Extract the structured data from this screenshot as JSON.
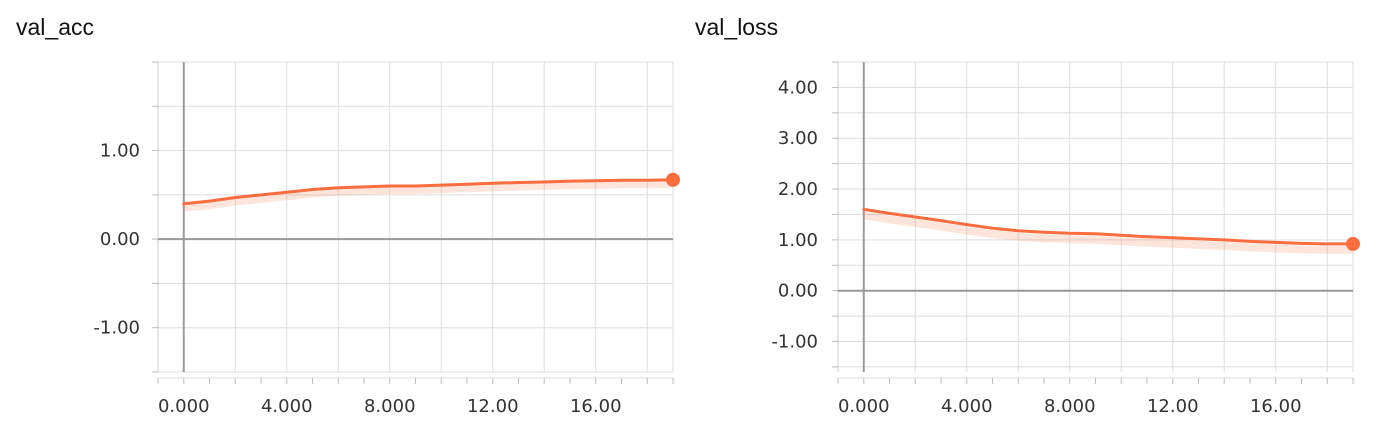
{
  "accent_color": "#f96d3f",
  "chart_data": [
    {
      "type": "line",
      "title": "val_acc",
      "xlabel": "",
      "ylabel": "",
      "xlim": [
        -1,
        19
      ],
      "ylim": [
        -1.5,
        2.0
      ],
      "x_ticks": [
        0,
        2,
        4,
        6,
        8,
        10,
        12,
        14,
        16,
        18
      ],
      "x_tick_labels": [
        "0.000",
        "4.000",
        "8.000",
        "12.00",
        "16.00"
      ],
      "x_tick_label_values": [
        0,
        4,
        8,
        12,
        16
      ],
      "y_ticks": [
        -1.5,
        -1.0,
        -0.5,
        0.0,
        0.5,
        1.0,
        1.5,
        2.0
      ],
      "y_tick_labels": [
        "1.00",
        "0.00",
        "-1.00"
      ],
      "y_tick_label_values": [
        1.0,
        0.0,
        -1.0
      ],
      "grid": true,
      "series": [
        {
          "color": "#f96d3f",
          "x": [
            0,
            1,
            2,
            3,
            4,
            5,
            6,
            7,
            8,
            9,
            10,
            11,
            12,
            13,
            14,
            15,
            16,
            17,
            18,
            19
          ],
          "y": [
            0.4,
            0.43,
            0.47,
            0.5,
            0.53,
            0.56,
            0.58,
            0.59,
            0.6,
            0.6,
            0.61,
            0.62,
            0.63,
            0.64,
            0.645,
            0.655,
            0.66,
            0.665,
            0.665,
            0.67
          ]
        }
      ]
    },
    {
      "type": "line",
      "title": "val_loss",
      "xlabel": "",
      "ylabel": "",
      "xlim": [
        -1,
        19
      ],
      "ylim": [
        -1.6,
        4.5
      ],
      "x_ticks": [
        0,
        2,
        4,
        6,
        8,
        10,
        12,
        14,
        16,
        18
      ],
      "x_tick_labels": [
        "0.000",
        "4.000",
        "8.000",
        "12.00",
        "16.00"
      ],
      "x_tick_label_values": [
        0,
        4,
        8,
        12,
        16
      ],
      "y_ticks": [
        -1.5,
        -1.0,
        -0.5,
        0.0,
        0.5,
        1.0,
        1.5,
        2.0,
        2.5,
        3.0,
        3.5,
        4.0,
        4.5
      ],
      "y_tick_labels": [
        "4.00",
        "3.00",
        "2.00",
        "1.00",
        "0.00",
        "-1.00"
      ],
      "y_tick_label_values": [
        4.0,
        3.0,
        2.0,
        1.0,
        0.0,
        -1.0
      ],
      "grid": true,
      "series": [
        {
          "color": "#f96d3f",
          "x": [
            0,
            1,
            2,
            3,
            4,
            5,
            6,
            7,
            8,
            9,
            10,
            11,
            12,
            13,
            14,
            15,
            16,
            17,
            18,
            19
          ],
          "y": [
            1.6,
            1.52,
            1.45,
            1.38,
            1.3,
            1.23,
            1.18,
            1.15,
            1.13,
            1.12,
            1.09,
            1.06,
            1.04,
            1.02,
            1.0,
            0.97,
            0.95,
            0.93,
            0.92,
            0.92
          ]
        }
      ]
    }
  ]
}
